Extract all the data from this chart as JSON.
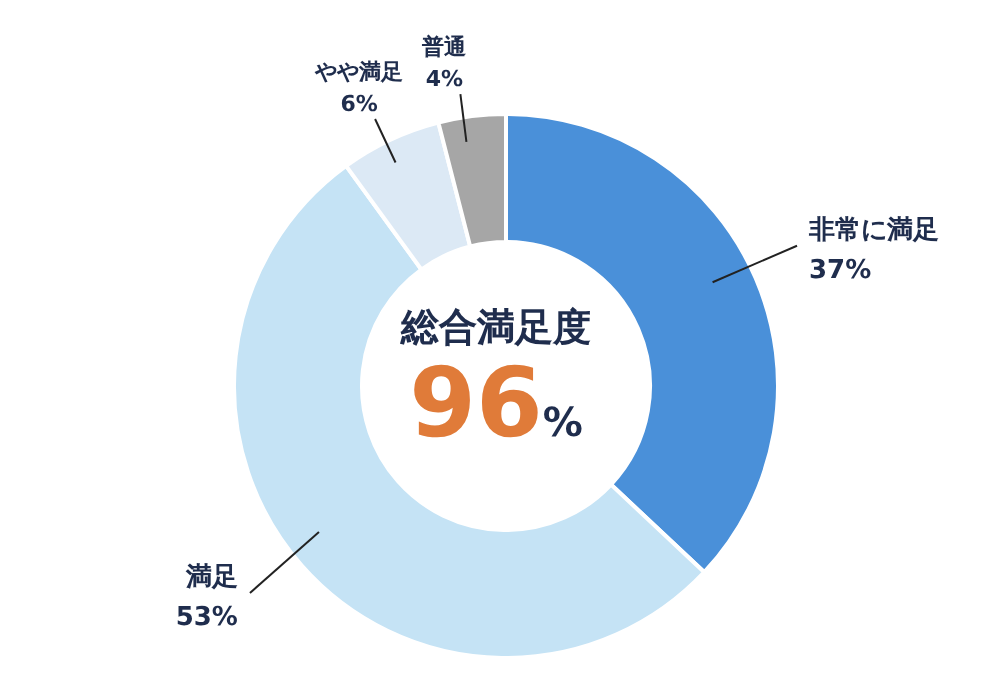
{
  "chart_data": {
    "type": "donut",
    "categories": [
      "非常に満足",
      "満足",
      "やや満足",
      "普通"
    ],
    "values": [
      37,
      53,
      6,
      4
    ],
    "colors": [
      "#4a90d9",
      "#c5e3f5",
      "#dce9f5",
      "#a6a6a6"
    ],
    "value_labels": [
      "37%",
      "53%",
      "6%",
      "4%"
    ],
    "annotations": [
      "総合満足度",
      "96%"
    ]
  }
}
